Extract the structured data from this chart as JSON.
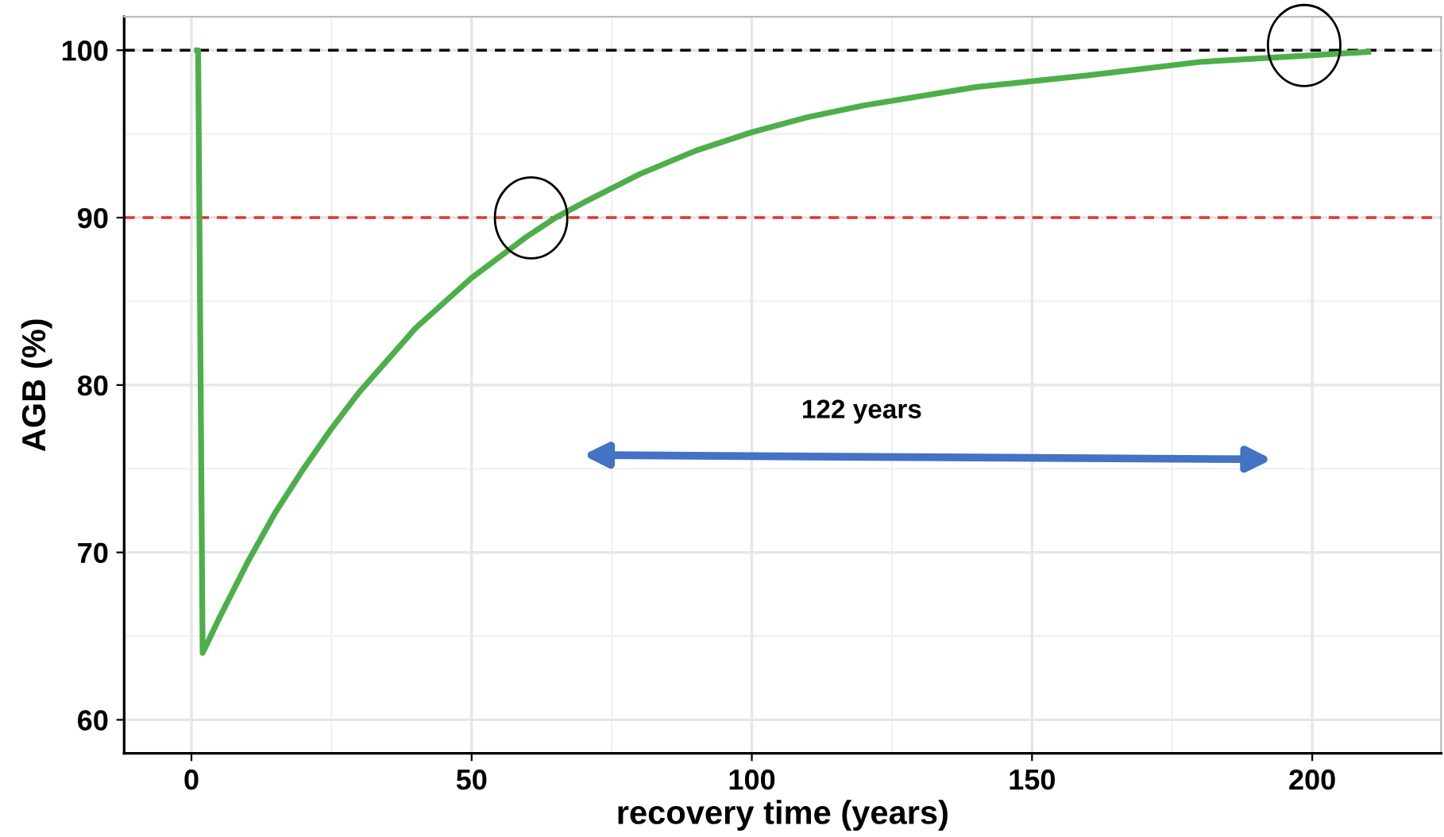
{
  "chart_data": {
    "type": "line",
    "xlabel": "recovery time (years)",
    "ylabel": "AGB (%)",
    "series": [
      {
        "color": "#4daf4a",
        "x": [
          1,
          1.2,
          2,
          5,
          10,
          15,
          20,
          25,
          30,
          40,
          50,
          60,
          65,
          70,
          80,
          90,
          100,
          110,
          120,
          140,
          160,
          180,
          200,
          210
        ],
        "values": [
          100,
          100,
          64,
          66.1,
          69.4,
          72.4,
          75.0,
          77.4,
          79.6,
          83.4,
          86.4,
          88.9,
          90.0,
          90.9,
          92.6,
          94.0,
          95.1,
          96.0,
          96.7,
          97.8,
          98.5,
          99.3,
          99.7,
          99.9
        ]
      }
    ],
    "xlim": [
      -12,
      223
    ],
    "ylim": [
      58,
      102
    ],
    "xticks": [
      0,
      50,
      100,
      150,
      200
    ],
    "yticks": [
      60,
      70,
      80,
      90,
      100
    ],
    "ref_lines": [
      {
        "axis": "y",
        "value": 100,
        "color": "#000000",
        "line_style": "dashed"
      },
      {
        "axis": "y",
        "value": 90,
        "color": "#e8332d",
        "line_style": "dashed"
      }
    ],
    "annotations": [
      "122 years"
    ],
    "grid": true,
    "line_style": "solid"
  }
}
